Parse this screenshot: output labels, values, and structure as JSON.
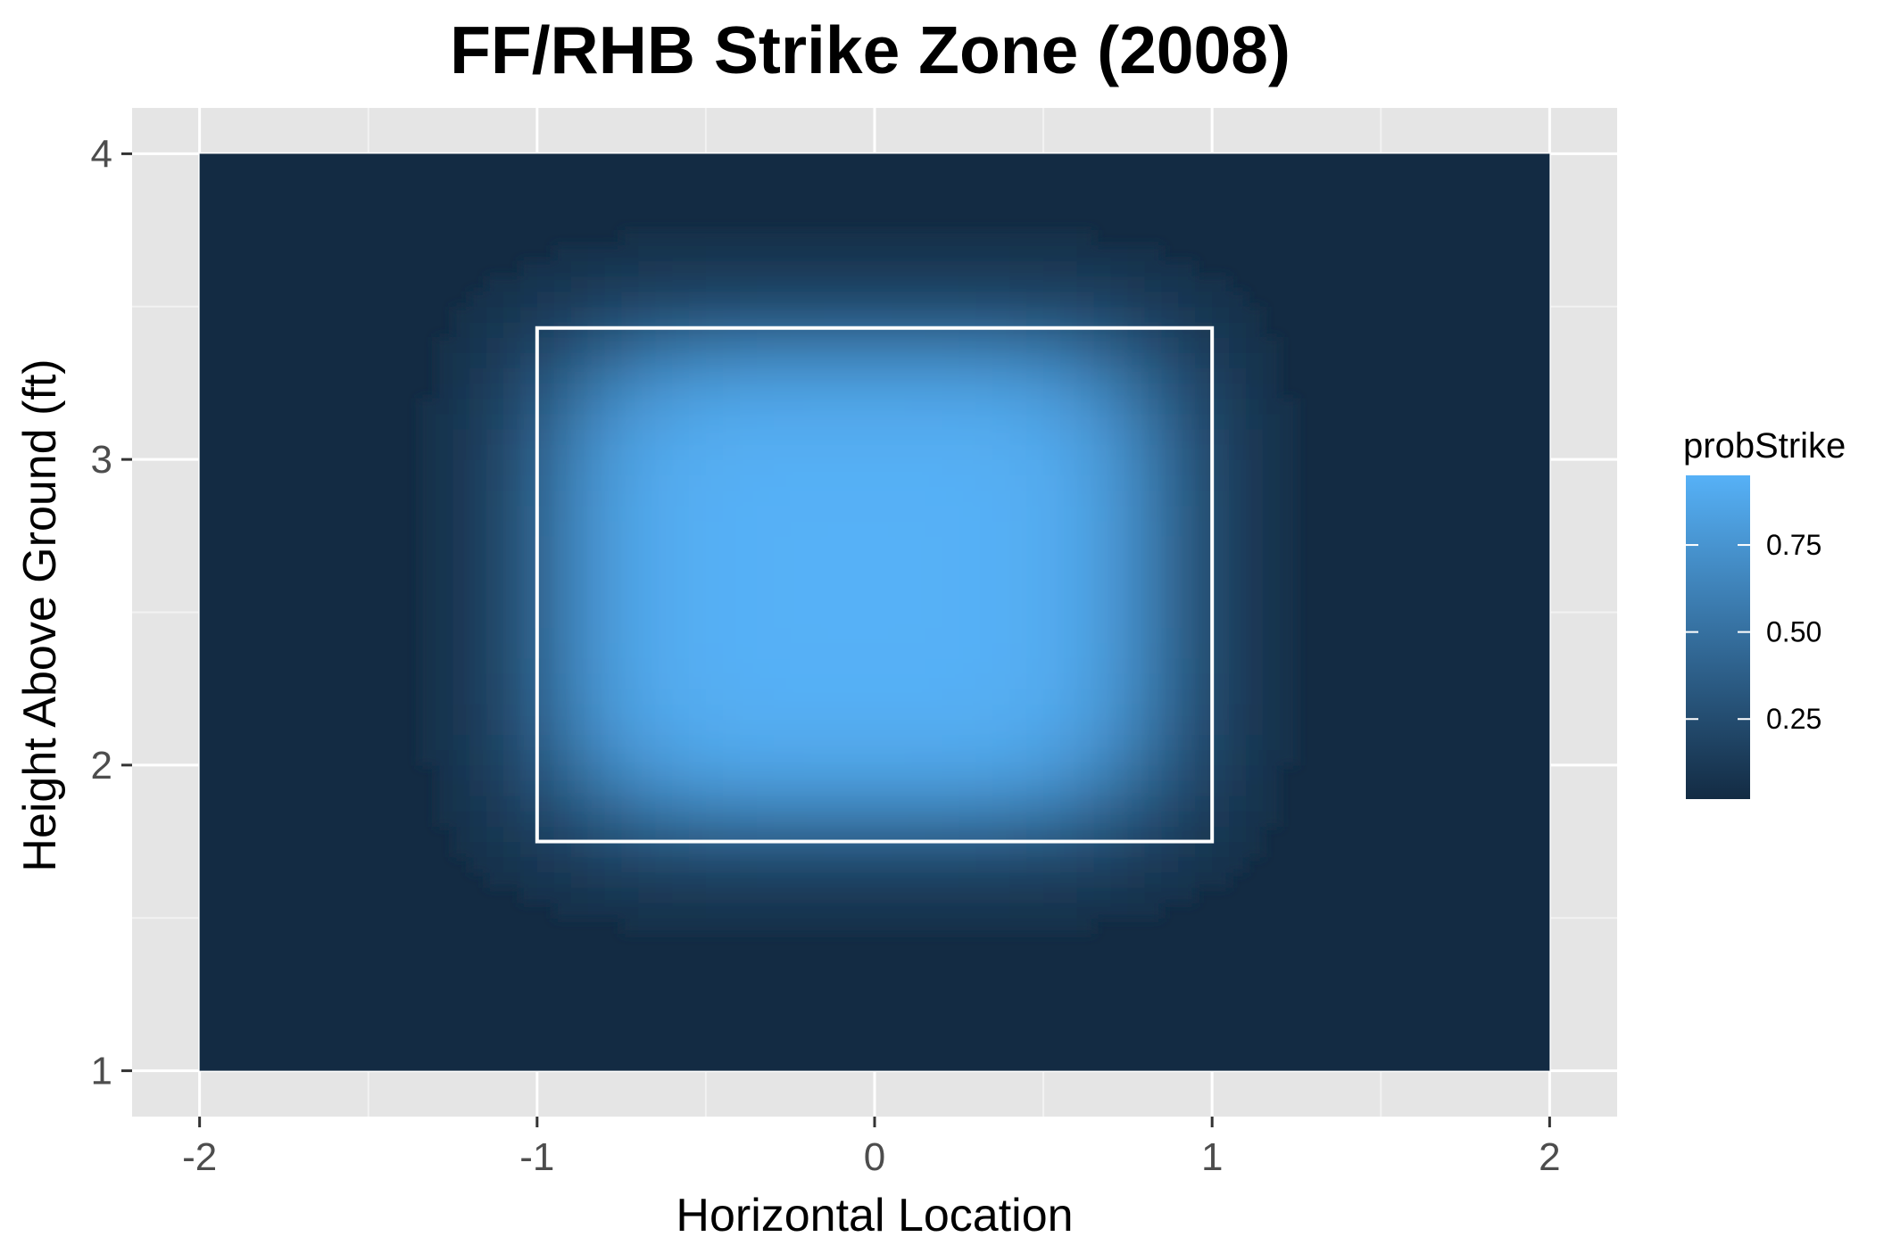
{
  "chart_data": {
    "type": "heatmap",
    "title": "FF/RHB Strike Zone (2008)",
    "xlabel": "Horizontal Location",
    "ylabel": "Height Above Ground (ft)",
    "xlim": [
      -2.2,
      2.2
    ],
    "ylim": [
      0.85,
      4.15
    ],
    "x_ticks": [
      -2,
      -1,
      0,
      1,
      2
    ],
    "y_ticks": [
      1,
      2,
      3,
      4
    ],
    "x_tick_labels": [
      "-2",
      "-1",
      "0",
      "1",
      "2"
    ],
    "y_tick_labels": [
      "1",
      "2",
      "3",
      "4"
    ],
    "grid": true,
    "heatmap_extent": {
      "x": [
        -2,
        2
      ],
      "y": [
        1,
        4
      ]
    },
    "probability_surface": {
      "description_of_peak": "max probStrike ≈ 0.95 over center of zone",
      "center_x": -0.05,
      "center_y": 2.6,
      "half_width_x": 0.85,
      "half_height_y_top": 0.75,
      "half_height_y_bottom": 0.75,
      "max_value": 0.95,
      "min_value": 0.02
    },
    "strike_zone_box": {
      "x": [
        -1.0,
        1.0
      ],
      "y": [
        1.75,
        3.43
      ],
      "color": "#ffffff"
    },
    "legend": {
      "title": "probStrike",
      "position": "right",
      "breaks": [
        0.25,
        0.5,
        0.75
      ],
      "break_labels": [
        "0.25",
        "0.50",
        "0.75"
      ],
      "range": [
        0.02,
        0.95
      ],
      "low_color": "#132b43",
      "high_color": "#56b1f7"
    }
  },
  "colors": {
    "panel_background": "#e5e5e5",
    "grid_major": "#ffffff",
    "grid_minor": "#f2f2f2"
  }
}
